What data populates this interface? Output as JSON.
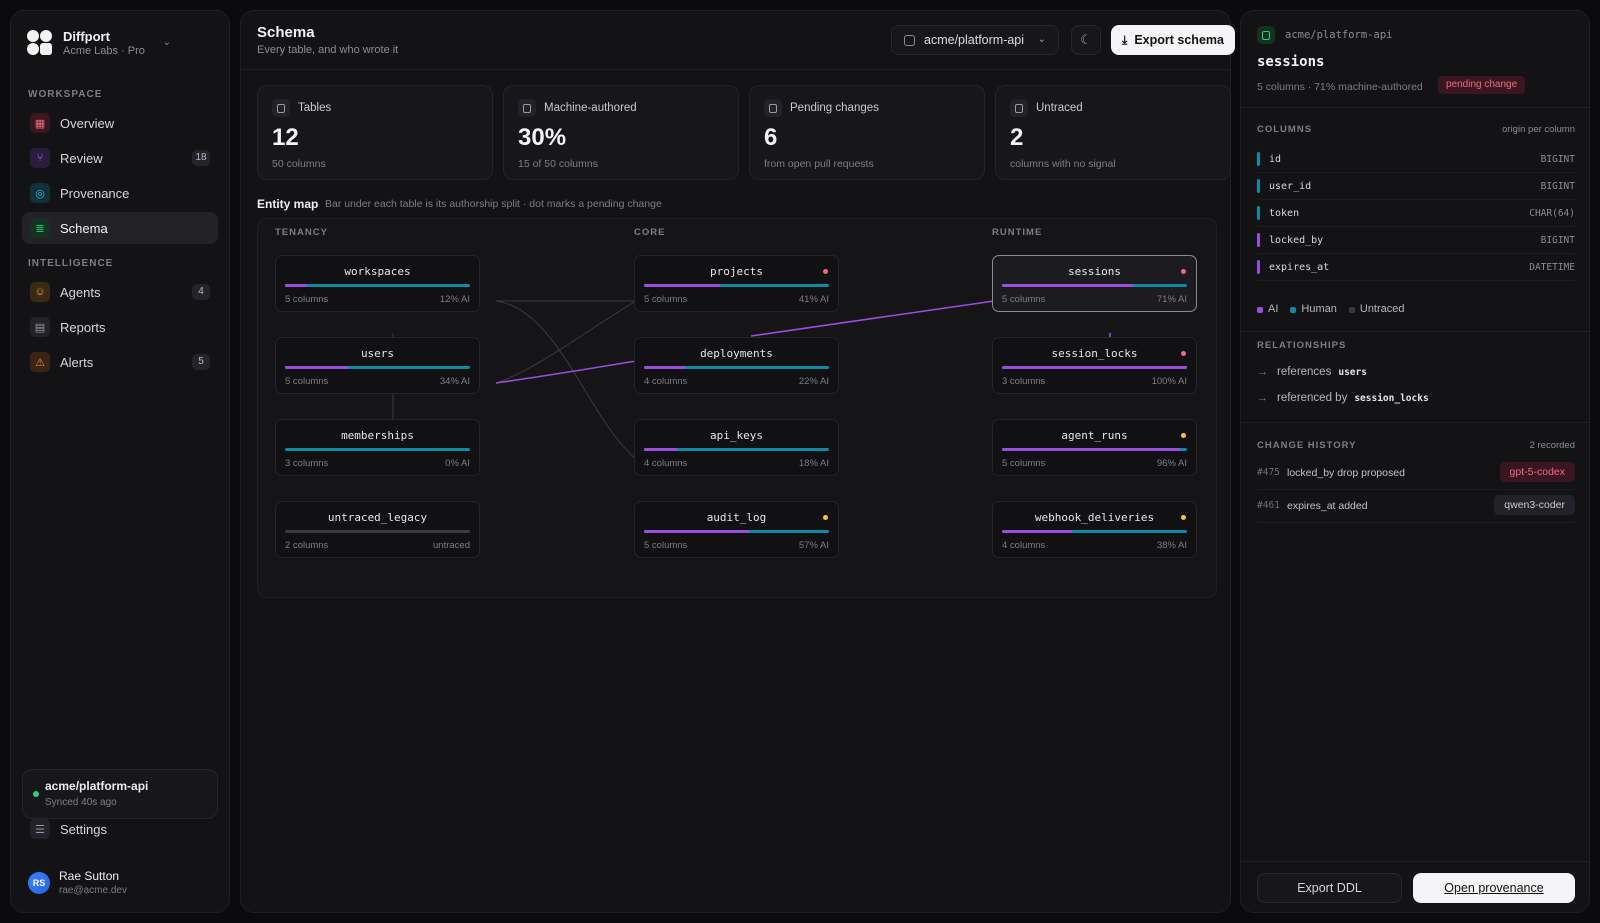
{
  "brand": {
    "name": "Diffport",
    "plan": "Acme Labs · Pro"
  },
  "sidebar": {
    "workspace_label": "WORKSPACE",
    "intelligence_label": "INTELLIGENCE",
    "items": [
      {
        "label": "Overview"
      },
      {
        "label": "Review",
        "badge": "18"
      },
      {
        "label": "Provenance"
      },
      {
        "label": "Schema"
      },
      {
        "label": "Agents",
        "badge": "4"
      },
      {
        "label": "Reports"
      },
      {
        "label": "Alerts",
        "badge": "5"
      }
    ],
    "repo": {
      "name": "acme/platform-api",
      "status": "Synced 40s ago"
    },
    "settings_label": "Settings",
    "user": {
      "initials": "RS",
      "name": "Rae Sutton",
      "email": "rae@acme.dev"
    }
  },
  "header": {
    "title": "Schema",
    "subtitle": "Every table, and who wrote it",
    "repo_select": "acme/platform-api",
    "export_label": "Export schema"
  },
  "stats": [
    {
      "label": "Tables",
      "value": "12",
      "sub": "50 columns"
    },
    {
      "label": "Machine-authored",
      "value": "30%",
      "sub": "15 of 50 columns"
    },
    {
      "label": "Pending changes",
      "value": "6",
      "sub": "from open pull requests"
    },
    {
      "label": "Untraced",
      "value": "2",
      "sub": "columns with no signal"
    }
  ],
  "entity_map": {
    "title": "Entity map",
    "note": "Bar under each table is its authorship split · dot marks a pending change",
    "groups": [
      "TENANCY",
      "CORE",
      "RUNTIME"
    ],
    "tables": [
      {
        "name": "workspaces",
        "cols": "5 columns",
        "ai_label": "12% AI",
        "ai": 12,
        "dot": ""
      },
      {
        "name": "users",
        "cols": "5 columns",
        "ai_label": "34% AI",
        "ai": 34,
        "dot": ""
      },
      {
        "name": "memberships",
        "cols": "3 columns",
        "ai_label": "0% AI",
        "ai": 0,
        "dot": ""
      },
      {
        "name": "untraced_legacy",
        "cols": "2 columns",
        "ai_label": "untraced",
        "ai": -1,
        "dot": ""
      },
      {
        "name": "projects",
        "cols": "5 columns",
        "ai_label": "41% AI",
        "ai": 41,
        "dot": "#f06a7f"
      },
      {
        "name": "deployments",
        "cols": "4 columns",
        "ai_label": "22% AI",
        "ai": 22,
        "dot": ""
      },
      {
        "name": "api_keys",
        "cols": "4 columns",
        "ai_label": "18% AI",
        "ai": 18,
        "dot": ""
      },
      {
        "name": "audit_log",
        "cols": "5 columns",
        "ai_label": "57% AI",
        "ai": 57,
        "dot": "#f5c542"
      },
      {
        "name": "sessions",
        "cols": "5 columns",
        "ai_label": "71% AI",
        "ai": 71,
        "dot": "#f06a7f"
      },
      {
        "name": "session_locks",
        "cols": "3 columns",
        "ai_label": "100% AI",
        "ai": 100,
        "dot": "#f06a7f"
      },
      {
        "name": "agent_runs",
        "cols": "5 columns",
        "ai_label": "96% AI",
        "ai": 96,
        "dot": "#f5c542"
      },
      {
        "name": "webhook_deliveries",
        "cols": "4 columns",
        "ai_label": "38% AI",
        "ai": 38,
        "dot": "#f5c542"
      }
    ]
  },
  "panel": {
    "repo": "acme/platform-api",
    "title": "sessions",
    "meta": "5 columns · 71% machine-authored",
    "pending": "pending change",
    "columns_label": "COLUMNS",
    "columns_right": "origin per column",
    "columns": [
      {
        "name": "id",
        "type": "BIGINT",
        "origin": "human"
      },
      {
        "name": "user_id",
        "type": "BIGINT",
        "origin": "human"
      },
      {
        "name": "token",
        "type": "CHAR(64)",
        "origin": "human"
      },
      {
        "name": "locked_by",
        "type": "BIGINT",
        "origin": "ai"
      },
      {
        "name": "expires_at",
        "type": "DATETIME",
        "origin": "ai"
      }
    ],
    "legend": [
      "AI",
      "Human",
      "Untraced"
    ],
    "relationships_label": "RELATIONSHIPS",
    "relationships": [
      {
        "text": "references",
        "target": "users"
      },
      {
        "text": "referenced by",
        "target": "session_locks"
      }
    ],
    "history_label": "CHANGE HISTORY",
    "history_right": "2 recorded",
    "history": [
      {
        "num": "#475",
        "text": "locked_by drop proposed",
        "tag": "gpt-5-codex"
      },
      {
        "num": "#461",
        "text": "expires_at added",
        "tag": "qwen3-coder"
      }
    ],
    "export_ddl": "Export DDL",
    "open_provenance": "Open provenance"
  },
  "colors": {
    "ai": "#9b4de0",
    "human": "#0f8aa3",
    "untraced": "#3a3a40",
    "pending_red": "#f06a7f",
    "pending_amber": "#f5c542"
  }
}
